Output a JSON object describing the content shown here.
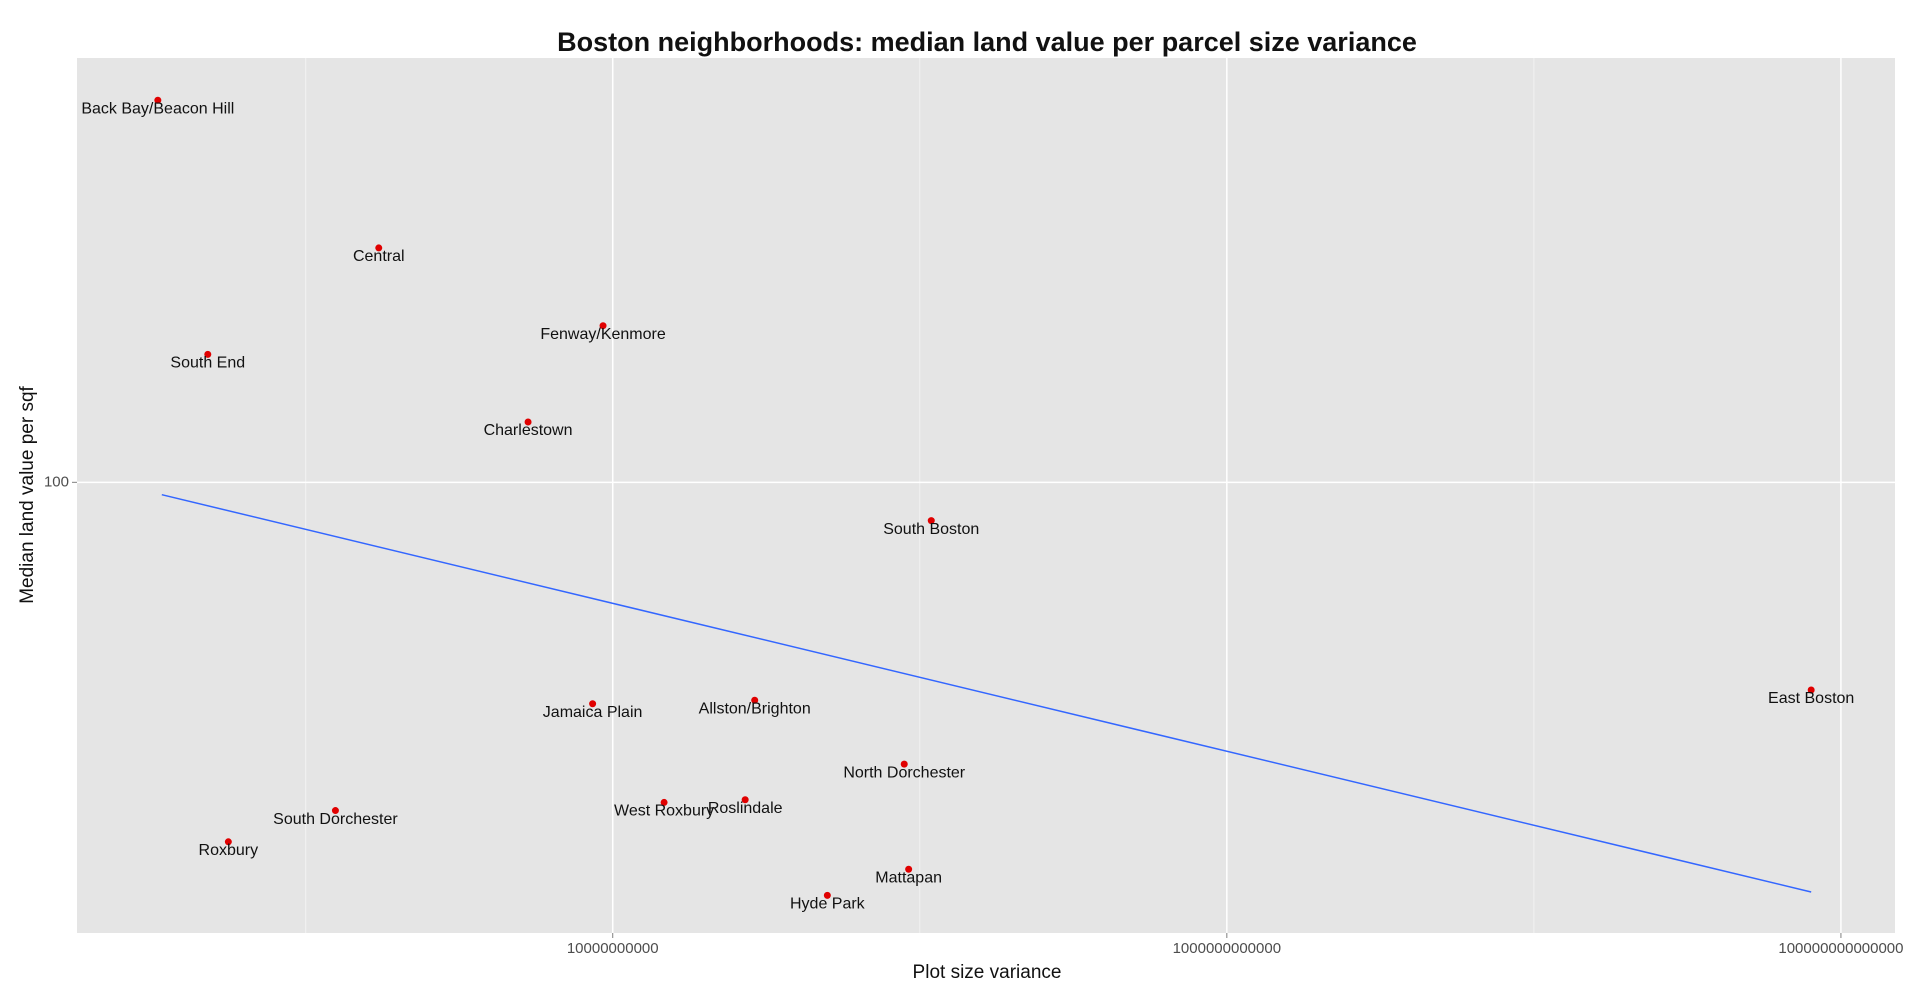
{
  "chart_data": {
    "type": "scatter",
    "title": "Boston neighborhoods: median land value per parcel size variance",
    "x_label": "Plot size variance",
    "y_label": "Median land value per sqf",
    "x_log": true,
    "y_log": true,
    "grid": true,
    "color": "#e00000",
    "categories": [
      "Back Bay/Beacon Hill",
      "Central",
      "Fenway/Kenmore",
      "South End",
      "Charlestown",
      "South Boston",
      "East Boston",
      "Jamaica Plain",
      "Allston/Brighton",
      "North Dorchester",
      "West Roxbury",
      "Roslindale",
      "South Dorchester",
      "Roxbury",
      "Mattapan",
      "Hyde Park"
    ],
    "x": [
      330000000,
      1730000000,
      9300000000,
      480000000,
      5300000000,
      109000000000,
      80000000000000,
      8600000000,
      29000000000,
      89000000000,
      14700000000,
      27000000000,
      1250000000,
      560000000,
      92000000000,
      50000000000
    ],
    "values": [
      256,
      178,
      147,
      137,
      116,
      91,
      60,
      58,
      58.5,
      50,
      45.5,
      45.8,
      44.6,
      41.3,
      38.6,
      36.2
    ],
    "trend_line": {
      "x": [
        340000000,
        80000000000000
      ],
      "y": [
        97,
        36.5
      ],
      "color": "#3366ff"
    },
    "xlim": [
      180000000,
      150000000000000
    ],
    "ylim": [
      33,
      284
    ],
    "xticks": [
      10000000000,
      1000000000000,
      100000000000000
    ],
    "x_minor_ticks": [
      1000000000,
      100000000000,
      10000000000000
    ],
    "yticks": [
      100
    ]
  }
}
